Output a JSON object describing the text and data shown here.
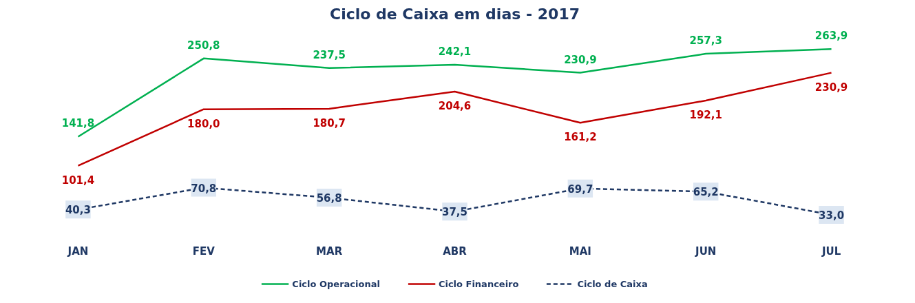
{
  "chart_data": {
    "type": "line",
    "title": "Ciclo de Caixa em dias - 2017",
    "categories": [
      "JAN",
      "FEV",
      "MAR",
      "ABR",
      "MAI",
      "JUN",
      "JUL"
    ],
    "series": [
      {
        "name": "Ciclo Operacional",
        "color": "#00b050",
        "values": [
          141.8,
          250.8,
          237.5,
          242.1,
          230.9,
          257.3,
          263.9
        ],
        "value_labels": [
          "141,8",
          "250,8",
          "237,5",
          "242,1",
          "230,9",
          "257,3",
          "263,9"
        ]
      },
      {
        "name": "Ciclo Financeiro",
        "color": "#c00000",
        "values": [
          101.4,
          180.0,
          180.7,
          204.6,
          161.2,
          192.1,
          230.9
        ],
        "value_labels": [
          "101,4",
          "180,0",
          "180,7",
          "204,6",
          "161,2",
          "192,1",
          "230,9"
        ]
      },
      {
        "name": "Ciclo de Caixa",
        "color": "#1f3864",
        "line_style": "dashed",
        "marker": "square",
        "values": [
          40.3,
          70.8,
          56.8,
          37.5,
          69.7,
          65.2,
          33.0
        ],
        "value_labels": [
          "40,3",
          "70,8",
          "56,8",
          "37,5",
          "69,7",
          "65,2",
          "33,0"
        ]
      }
    ],
    "tick_labels": "x",
    "legend": "bottom"
  }
}
